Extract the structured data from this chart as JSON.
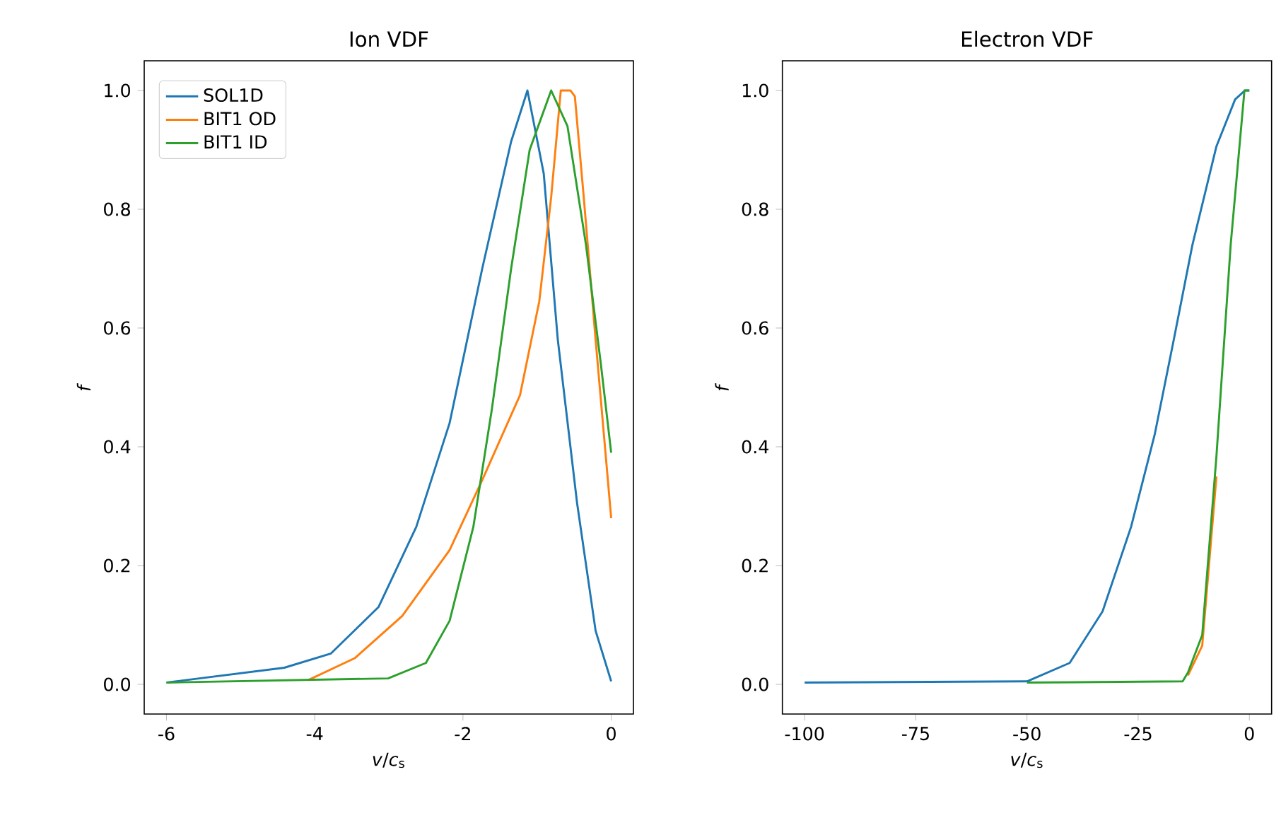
{
  "chart_data": [
    {
      "type": "line",
      "title": "Ion VDF",
      "xlabel": "*v*/*c*$_{s}$",
      "ylabel": "*f*",
      "xlim": [
        -6.3,
        0.3
      ],
      "ylim": [
        -0.05,
        1.05
      ],
      "xticks": [
        -6,
        -4,
        -2,
        0
      ],
      "yticks": [
        {
          "value": 0,
          "label": "0.0"
        },
        {
          "value": 0.2,
          "label": "0.2"
        },
        {
          "value": 0.4,
          "label": "0.4"
        },
        {
          "value": 0.6,
          "label": "0.6"
        },
        {
          "value": 0.8,
          "label": "0.8"
        },
        {
          "value": 1,
          "label": "1.0"
        }
      ],
      "grid": false,
      "legend": "top left",
      "series": [
        {
          "name": "SOL1D",
          "color": "#1f77b4",
          "x": [
            -6,
            -4.41,
            -3.78,
            -3.14,
            -2.63,
            -2.18,
            -1.74,
            -1.35,
            -1.13,
            -0.91,
            -0.72,
            -0.46,
            -0.21,
            0
          ],
          "values": [
            0.003,
            0.028,
            0.052,
            0.13,
            0.265,
            0.44,
            0.7,
            0.914,
            1.0,
            0.86,
            0.58,
            0.305,
            0.09,
            0.005
          ]
        },
        {
          "name": "BIT1 OD",
          "color": "#ff7f0e",
          "x": [
            -4.09,
            -3.46,
            -2.82,
            -2.18,
            -1.74,
            -1.23,
            -0.97,
            -0.81,
            -0.68,
            -0.55,
            -0.49,
            -0.37,
            -0.21,
            0
          ],
          "values": [
            0.007,
            0.044,
            0.115,
            0.226,
            0.344,
            0.487,
            0.645,
            0.82,
            1.0,
            1.0,
            0.99,
            0.82,
            0.58,
            0.28
          ]
        },
        {
          "name": "BIT1 ID",
          "color": "#2ca02c",
          "x": [
            -6,
            -3.01,
            -2.5,
            -2.18,
            -1.86,
            -1.61,
            -1.35,
            -1.1,
            -0.81,
            -0.59,
            -0.34,
            -0.14,
            0
          ],
          "values": [
            0.003,
            0.01,
            0.036,
            0.107,
            0.265,
            0.463,
            0.7,
            0.9,
            1.0,
            0.94,
            0.74,
            0.54,
            0.39
          ]
        }
      ]
    },
    {
      "type": "line",
      "title": "Electron VDF",
      "xlabel": "*v*/*c*$_{s}$",
      "ylabel": "*f*",
      "xlim": [
        -105,
        5
      ],
      "ylim": [
        -0.05,
        1.05
      ],
      "xticks": [
        -100,
        -75,
        -50,
        -25,
        0
      ],
      "yticks": [
        {
          "value": 0,
          "label": "0.0"
        },
        {
          "value": 0.2,
          "label": "0.2"
        },
        {
          "value": 0.4,
          "label": "0.4"
        },
        {
          "value": 0.6,
          "label": "0.6"
        },
        {
          "value": 0.8,
          "label": "0.8"
        },
        {
          "value": 1,
          "label": "1.0"
        }
      ],
      "grid": false,
      "series": [
        {
          "color": "#1f77b4",
          "x": [
            -100,
            -50,
            -40.4,
            -33,
            -26.6,
            -21.3,
            -17,
            -12.8,
            -7.4,
            -3.2,
            -1,
            0
          ],
          "values": [
            0.003,
            0.005,
            0.036,
            0.123,
            0.265,
            0.42,
            0.58,
            0.74,
            0.906,
            0.985,
            1.0,
            1.0
          ]
        },
        {
          "color": "#ff7f0e",
          "x": [
            -13.8,
            -10.6,
            -7.4
          ],
          "values": [
            0.015,
            0.065,
            0.35
          ]
        },
        {
          "color": "#2ca02c",
          "x": [
            -50,
            -15,
            -13.8,
            -10.6,
            -7.4,
            -4.2,
            -1.1,
            0
          ],
          "values": [
            0.003,
            0.005,
            0.02,
            0.083,
            0.384,
            0.74,
            1.0,
            1.0
          ]
        }
      ]
    }
  ]
}
